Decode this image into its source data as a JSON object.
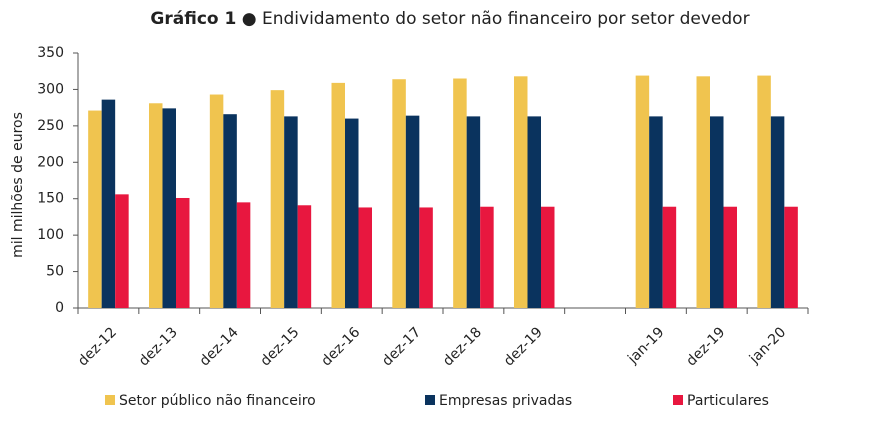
{
  "chart_data": {
    "type": "bar",
    "title_prefix": "Gráfico 1",
    "title": "● Endividamento do setor não financeiro por setor devedor",
    "y_label": "mil milhões de euros",
    "categories": [
      "dez-12",
      "dez-13",
      "dez-14",
      "dez-15",
      "dez-16",
      "dez-17",
      "dez-18",
      "dez-19",
      null,
      "jan-19",
      "dez-19",
      "jan-20"
    ],
    "series": [
      {
        "name": "Setor público não financeiro",
        "color": "#f0c44f",
        "values": [
          271,
          281,
          293,
          299,
          309,
          314,
          315,
          318,
          null,
          319,
          318,
          319
        ]
      },
      {
        "name": "Empresas privadas",
        "color": "#0a335e",
        "values": [
          286,
          274,
          266,
          263,
          260,
          264,
          263,
          263,
          null,
          263,
          263,
          263
        ]
      },
      {
        "name": "Particulares",
        "color": "#e8173f",
        "values": [
          156,
          151,
          145,
          141,
          138,
          138,
          139,
          139,
          null,
          139,
          139,
          139
        ]
      }
    ],
    "ylim": [
      0,
      350
    ],
    "yticks": [
      0,
      50,
      100,
      150,
      200,
      250,
      300,
      350
    ],
    "grid": false
  }
}
